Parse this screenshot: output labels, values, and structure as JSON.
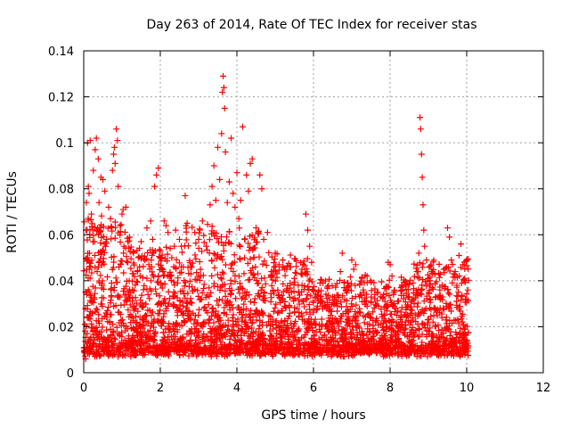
{
  "chart_data": {
    "type": "scatter",
    "title": "Day 263 of 2014, Rate Of TEC Index for receiver stas",
    "xlabel": "GPS time / hours",
    "ylabel": "ROTI / TECUs",
    "xlim": [
      0,
      12
    ],
    "ylim": [
      0,
      0.14
    ],
    "x_ticks": [
      0,
      2,
      4,
      6,
      8,
      10,
      12
    ],
    "x_tick_labels": [
      "0",
      "2",
      "4",
      "6",
      "8",
      "10",
      "12"
    ],
    "y_ticks": [
      0,
      0.02,
      0.04,
      0.06,
      0.08,
      0.1,
      0.12,
      0.14
    ],
    "y_tick_labels": [
      "0",
      "0.02",
      "0.04",
      "0.06",
      "0.08",
      "0.1",
      "0.12",
      "0.14"
    ],
    "grid": true,
    "marker": "plus",
    "marker_color": "#ff0000",
    "series": [
      {
        "name": "ROTI",
        "points": [
          [
            0.02,
            0.011
          ],
          [
            0.03,
            0.021
          ],
          [
            0.05,
            0.035
          ],
          [
            0.06,
            0.062
          ],
          [
            0.07,
            0.074
          ],
          [
            0.08,
            0.045
          ],
          [
            0.1,
            0.1
          ],
          [
            0.12,
            0.081
          ],
          [
            0.14,
            0.078
          ],
          [
            0.15,
            0.052
          ],
          [
            0.17,
            0.101
          ],
          [
            0.2,
            0.069
          ],
          [
            0.22,
            0.031
          ],
          [
            0.25,
            0.088
          ],
          [
            0.28,
            0.057
          ],
          [
            0.3,
            0.097
          ],
          [
            0.33,
            0.102
          ],
          [
            0.35,
            0.044
          ],
          [
            0.38,
            0.093
          ],
          [
            0.4,
            0.074
          ],
          [
            0.42,
            0.061
          ],
          [
            0.45,
            0.085
          ],
          [
            0.48,
            0.038
          ],
          [
            0.5,
            0.084
          ],
          [
            0.55,
            0.079
          ],
          [
            0.58,
            0.026
          ],
          [
            0.6,
            0.058
          ],
          [
            0.65,
            0.072
          ],
          [
            0.7,
            0.067
          ],
          [
            0.72,
            0.033
          ],
          [
            0.75,
            0.088
          ],
          [
            0.78,
            0.095
          ],
          [
            0.8,
            0.098
          ],
          [
            0.82,
            0.091
          ],
          [
            0.85,
            0.106
          ],
          [
            0.88,
            0.101
          ],
          [
            0.9,
            0.081
          ],
          [
            0.92,
            0.046
          ],
          [
            0.95,
            0.064
          ],
          [
            1.0,
            0.069
          ],
          [
            1.03,
            0.071
          ],
          [
            1.05,
            0.055
          ],
          [
            1.1,
            0.072
          ],
          [
            1.15,
            0.048
          ],
          [
            1.2,
            0.036
          ],
          [
            1.3,
            0.052
          ],
          [
            1.4,
            0.044
          ],
          [
            1.5,
            0.057
          ],
          [
            1.55,
            0.029
          ],
          [
            1.6,
            0.049
          ],
          [
            1.65,
            0.063
          ],
          [
            1.7,
            0.047
          ],
          [
            1.75,
            0.066
          ],
          [
            1.8,
            0.058
          ],
          [
            1.85,
            0.081
          ],
          [
            1.9,
            0.086
          ],
          [
            1.95,
            0.089
          ],
          [
            2.0,
            0.053
          ],
          [
            2.05,
            0.045
          ],
          [
            2.1,
            0.066
          ],
          [
            2.15,
            0.064
          ],
          [
            2.2,
            0.061
          ],
          [
            2.3,
            0.05
          ],
          [
            2.4,
            0.062
          ],
          [
            2.45,
            0.039
          ],
          [
            2.5,
            0.058
          ],
          [
            2.55,
            0.055
          ],
          [
            2.6,
            0.046
          ],
          [
            2.65,
            0.077
          ],
          [
            2.7,
            0.065
          ],
          [
            2.8,
            0.043
          ],
          [
            2.9,
            0.061
          ],
          [
            3.0,
            0.058
          ],
          [
            3.05,
            0.032
          ],
          [
            3.1,
            0.066
          ],
          [
            3.2,
            0.055
          ],
          [
            3.3,
            0.073
          ],
          [
            3.35,
            0.081
          ],
          [
            3.4,
            0.09
          ],
          [
            3.45,
            0.075
          ],
          [
            3.5,
            0.098
          ],
          [
            3.55,
            0.084
          ],
          [
            3.6,
            0.104
          ],
          [
            3.62,
            0.122
          ],
          [
            3.64,
            0.129
          ],
          [
            3.66,
            0.124
          ],
          [
            3.68,
            0.115
          ],
          [
            3.7,
            0.096
          ],
          [
            3.75,
            0.074
          ],
          [
            3.8,
            0.083
          ],
          [
            3.85,
            0.102
          ],
          [
            3.9,
            0.078
          ],
          [
            3.95,
            0.072
          ],
          [
            4.0,
            0.087
          ],
          [
            4.05,
            0.067
          ],
          [
            4.1,
            0.075
          ],
          [
            4.15,
            0.107
          ],
          [
            4.2,
            0.058
          ],
          [
            4.25,
            0.086
          ],
          [
            4.3,
            0.079
          ],
          [
            4.35,
            0.091
          ],
          [
            4.4,
            0.093
          ],
          [
            4.5,
            0.063
          ],
          [
            4.55,
            0.061
          ],
          [
            4.6,
            0.086
          ],
          [
            4.65,
            0.08
          ],
          [
            4.7,
            0.058
          ],
          [
            4.8,
            0.061
          ],
          [
            4.9,
            0.044
          ],
          [
            5.0,
            0.052
          ],
          [
            5.1,
            0.047
          ],
          [
            5.2,
            0.049
          ],
          [
            5.3,
            0.045
          ],
          [
            5.4,
            0.046
          ],
          [
            5.5,
            0.041
          ],
          [
            5.6,
            0.038
          ],
          [
            5.7,
            0.045
          ],
          [
            5.8,
            0.069
          ],
          [
            5.85,
            0.062
          ],
          [
            5.9,
            0.055
          ],
          [
            5.95,
            0.048
          ],
          [
            6.0,
            0.036
          ],
          [
            6.1,
            0.033
          ],
          [
            6.2,
            0.031
          ],
          [
            6.3,
            0.029
          ],
          [
            6.4,
            0.027
          ],
          [
            6.5,
            0.033
          ],
          [
            6.6,
            0.031
          ],
          [
            6.7,
            0.044
          ],
          [
            6.75,
            0.052
          ],
          [
            6.8,
            0.037
          ],
          [
            6.9,
            0.039
          ],
          [
            7.0,
            0.049
          ],
          [
            7.05,
            0.045
          ],
          [
            7.1,
            0.047
          ],
          [
            7.2,
            0.033
          ],
          [
            7.3,
            0.036
          ],
          [
            7.4,
            0.042
          ],
          [
            7.5,
            0.031
          ],
          [
            7.6,
            0.034
          ],
          [
            7.7,
            0.029
          ],
          [
            7.8,
            0.033
          ],
          [
            7.9,
            0.037
          ],
          [
            7.95,
            0.048
          ],
          [
            8.0,
            0.047
          ],
          [
            8.05,
            0.042
          ],
          [
            8.1,
            0.035
          ],
          [
            8.2,
            0.031
          ],
          [
            8.3,
            0.036
          ],
          [
            8.4,
            0.038
          ],
          [
            8.5,
            0.033
          ],
          [
            8.6,
            0.039
          ],
          [
            8.7,
            0.044
          ],
          [
            8.75,
            0.052
          ],
          [
            8.78,
            0.111
          ],
          [
            8.8,
            0.106
          ],
          [
            8.82,
            0.095
          ],
          [
            8.84,
            0.085
          ],
          [
            8.86,
            0.073
          ],
          [
            8.88,
            0.062
          ],
          [
            8.9,
            0.055
          ],
          [
            8.95,
            0.049
          ],
          [
            9.0,
            0.041
          ],
          [
            9.1,
            0.037
          ],
          [
            9.2,
            0.033
          ],
          [
            9.3,
            0.036
          ],
          [
            9.4,
            0.045
          ],
          [
            9.5,
            0.063
          ],
          [
            9.55,
            0.059
          ],
          [
            9.6,
            0.049
          ],
          [
            9.7,
            0.044
          ],
          [
            9.8,
            0.051
          ],
          [
            9.85,
            0.056
          ],
          [
            9.9,
            0.047
          ],
          [
            9.95,
            0.041
          ],
          [
            10.0,
            0.049
          ],
          [
            10.03,
            0.036
          ],
          [
            0.05,
            0.006
          ],
          [
            0.4,
            0.008
          ],
          [
            0.9,
            0.007
          ],
          [
            1.4,
            0.009
          ],
          [
            2.2,
            0.008
          ],
          [
            2.9,
            0.01
          ],
          [
            3.6,
            0.009
          ],
          [
            4.4,
            0.01
          ],
          [
            5.2,
            0.008
          ],
          [
            6.1,
            0.009
          ],
          [
            6.8,
            0.007
          ],
          [
            7.5,
            0.009
          ],
          [
            8.3,
            0.008
          ],
          [
            9.1,
            0.009
          ],
          [
            9.8,
            0.008
          ]
        ]
      }
    ]
  }
}
